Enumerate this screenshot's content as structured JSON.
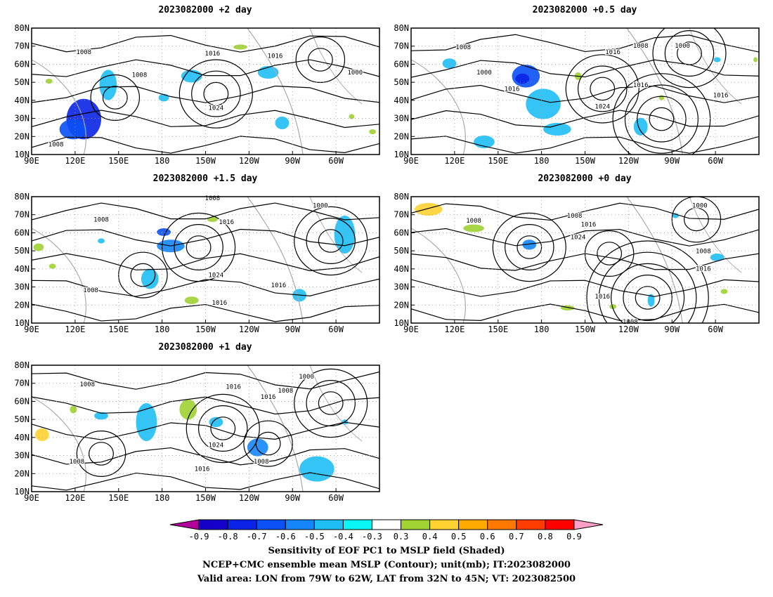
{
  "panels": [
    {
      "title": "2023082000 +2 day",
      "x_ticks": [
        "90E",
        "120E",
        "150E",
        "180",
        "150W",
        "120W",
        "90W",
        "60W"
      ],
      "y_ticks": [
        "10N",
        "20N",
        "30N",
        "40N",
        "50N",
        "60N",
        "70N",
        "80N"
      ],
      "contour_labels": [
        "1008",
        "1016",
        "1016",
        "1008",
        "1000",
        "1024",
        "1008"
      ]
    },
    {
      "title": "2023082000 +0.5 day",
      "x_ticks": [
        "90E",
        "120E",
        "150E",
        "180",
        "150W",
        "120W",
        "90W",
        "60W"
      ],
      "y_ticks": [
        "10N",
        "20N",
        "30N",
        "40N",
        "50N",
        "60N",
        "70N",
        "80N"
      ],
      "contour_labels": [
        "1008",
        "1016",
        "1008",
        "1000",
        "1000",
        "1016",
        "1016",
        "1024",
        "1016"
      ]
    },
    {
      "title": "2023082000 +1.5 day",
      "x_ticks": [
        "90E",
        "120E",
        "150E",
        "180",
        "150W",
        "120W",
        "90W",
        "60W"
      ],
      "y_ticks": [
        "10N",
        "20N",
        "30N",
        "40N",
        "50N",
        "60N",
        "70N",
        "80N"
      ],
      "contour_labels": [
        "1008",
        "1008",
        "1016",
        "1000",
        "1024",
        "1008",
        "1016",
        "1016"
      ]
    },
    {
      "title": "2023082000 +0 day",
      "x_ticks": [
        "90E",
        "120E",
        "150E",
        "180",
        "150W",
        "120W",
        "90W",
        "60W"
      ],
      "y_ticks": [
        "10N",
        "20N",
        "30N",
        "40N",
        "50N",
        "60N",
        "70N",
        "80N"
      ],
      "contour_labels": [
        "1008",
        "1008",
        "1016",
        "1024",
        "1000",
        "1008",
        "1016",
        "1016",
        "1008"
      ]
    },
    {
      "title": "2023082000 +1 day",
      "x_ticks": [
        "90E",
        "120E",
        "150E",
        "180",
        "150W",
        "120W",
        "90W",
        "60W"
      ],
      "y_ticks": [
        "10N",
        "20N",
        "30N",
        "40N",
        "50N",
        "60N",
        "70N",
        "80N"
      ],
      "contour_labels": [
        "1008",
        "1016",
        "1016",
        "1008",
        "1000",
        "1024",
        "1016",
        "1008",
        "1008"
      ]
    }
  ],
  "colorbar": {
    "labels": [
      "-0.9",
      "-0.8",
      "-0.7",
      "-0.6",
      "-0.5",
      "-0.4",
      "-0.3",
      "0.3",
      "0.4",
      "0.5",
      "0.6",
      "0.7",
      "0.8",
      "0.9"
    ],
    "colors": [
      "#b4009b",
      "#1400c8",
      "#0a23e6",
      "#0a50f5",
      "#1486fa",
      "#1ebef5",
      "#0af5f5",
      "#ffffff",
      "#a0d232",
      "#ffd232",
      "#ffaa00",
      "#ff7800",
      "#ff3c00",
      "#ff0000",
      "#ffa0c8"
    ]
  },
  "footer": {
    "line1": "Sensitivity of EOF PC1 to MSLP field (Shaded)",
    "line2": "NCEP+CMC ensemble mean MSLP (Contour); unit(mb); IT:2023082000",
    "line3": "Valid area: LON from 79W to 62W, LAT from 32N to 45N; VT: 2023082500"
  }
}
